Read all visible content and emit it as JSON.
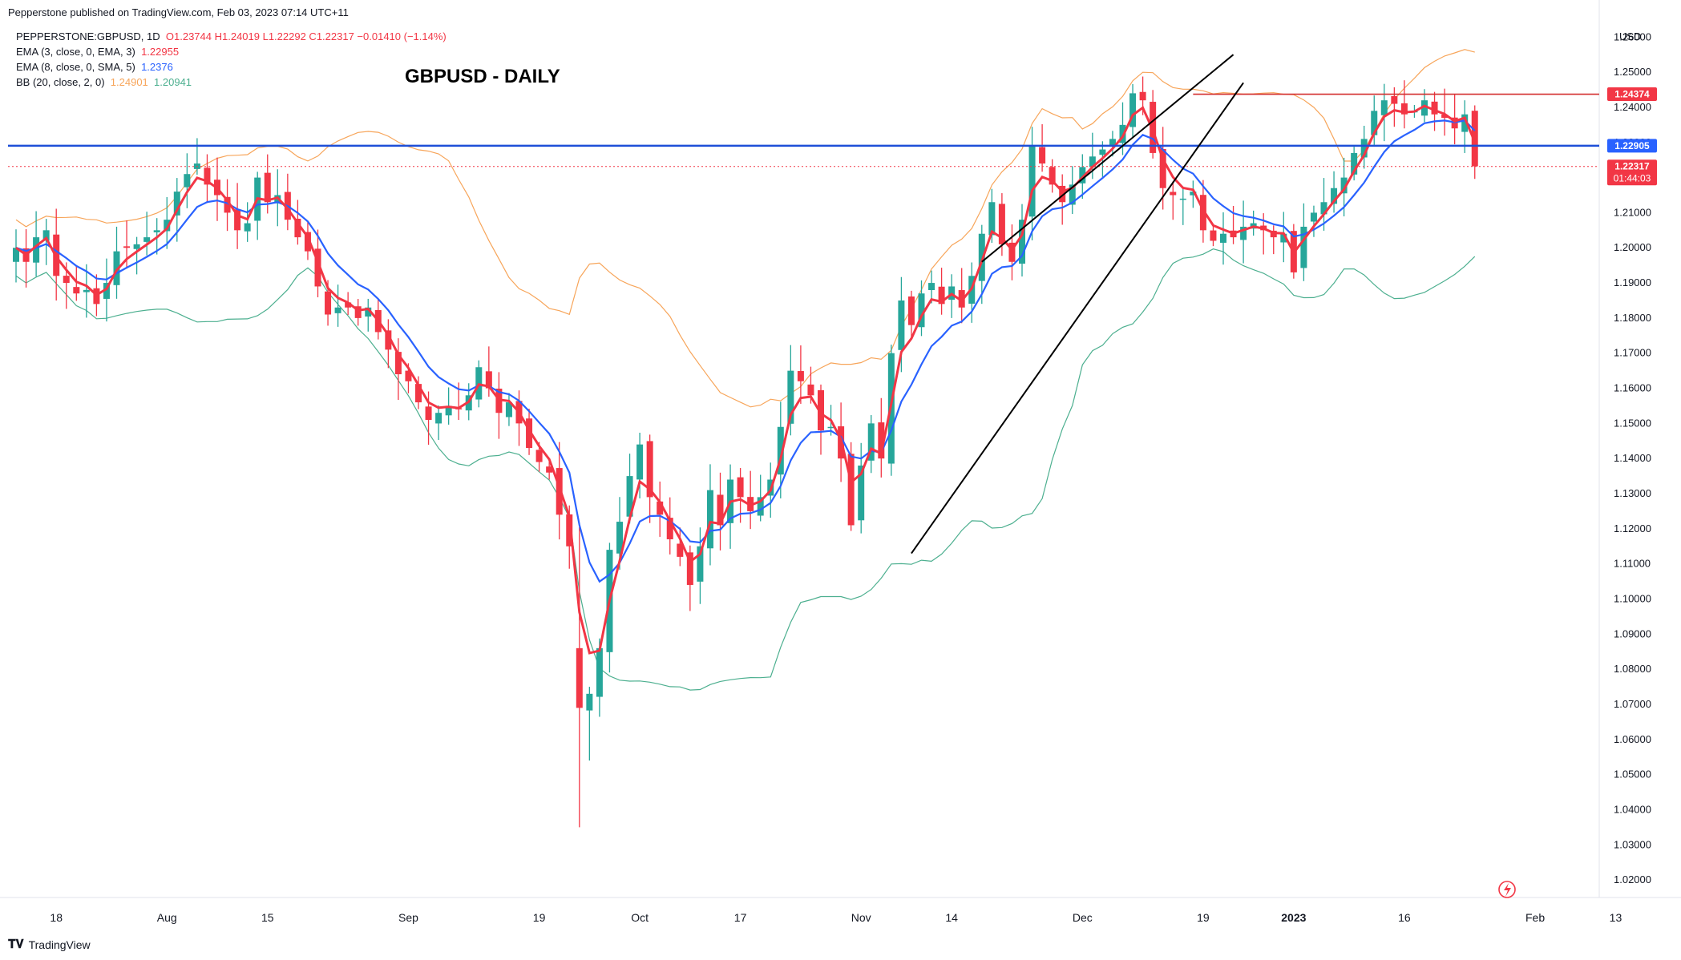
{
  "header": {
    "published": "Pepperstone published on TradingView.com, Feb 03, 2023 07:14 UTC+11"
  },
  "legend": {
    "symbol": "PEPPERSTONE:GBPUSD, 1D",
    "ohlc": "O1.23744  H1.24019  L1.22292  C1.22317  −0.01410 (−1.14%)",
    "ema3_label": "EMA (3, close, 0, EMA, 3)",
    "ema3_value": "1.22955",
    "ema8_label": "EMA (8, close, 0, SMA, 5)",
    "ema8_value": "1.2376",
    "bb_label": "BB (20, close, 2, 0)",
    "bb_upper": "1.24901",
    "bb_lower": "1.20941"
  },
  "chart_title": "GBPUSD - DAILY",
  "footer": {
    "brand": "TradingView"
  },
  "colors": {
    "up": "#26a69a",
    "down": "#f23645",
    "ema3": "#f23645",
    "ema8": "#2962ff",
    "bb_upper": "#f7a55a",
    "bb_lower": "#4caf8f",
    "support": "#1e4fd8",
    "resistance": "#d32f2f",
    "trendline": "#000000"
  },
  "price_tags": [
    {
      "value": "1.24374",
      "color": "#f23645"
    },
    {
      "value": "1.22905",
      "color": "#2962ff"
    },
    {
      "value": "1.22317",
      "sub": "01:44:03",
      "color": "#f23645"
    }
  ],
  "chart_data": {
    "type": "candlestick",
    "title": "GBPUSD - DAILY",
    "currency_label": "USD",
    "y_range": [
      1.015,
      1.266
    ],
    "y_ticks": [
      "1.02000",
      "1.03000",
      "1.04000",
      "1.05000",
      "1.06000",
      "1.07000",
      "1.08000",
      "1.09000",
      "1.10000",
      "1.11000",
      "1.12000",
      "1.13000",
      "1.14000",
      "1.15000",
      "1.16000",
      "1.17000",
      "1.18000",
      "1.19000",
      "1.20000",
      "1.21000",
      "1.22000",
      "1.23000",
      "1.24000",
      "1.25000",
      "1.26000"
    ],
    "x_ticks": [
      {
        "label": "18",
        "day": 4
      },
      {
        "label": "Aug",
        "day": 15
      },
      {
        "label": "15",
        "day": 25
      },
      {
        "label": "Sep",
        "day": 39
      },
      {
        "label": "19",
        "day": 52
      },
      {
        "label": "Oct",
        "day": 62
      },
      {
        "label": "17",
        "day": 72
      },
      {
        "label": "Nov",
        "day": 84
      },
      {
        "label": "14",
        "day": 93
      },
      {
        "label": "Dec",
        "day": 106
      },
      {
        "label": "19",
        "day": 118
      },
      {
        "label": "2023",
        "day": 127
      },
      {
        "label": "16",
        "day": 138
      },
      {
        "label": "Feb",
        "day": 151
      },
      {
        "label": "13",
        "day": 159
      }
    ],
    "closes": [
      1.2,
      1.196,
      1.203,
      1.205,
      1.192,
      1.19,
      1.187,
      1.188,
      1.184,
      1.19,
      1.199,
      1.2,
      1.201,
      1.203,
      1.205,
      1.208,
      1.216,
      1.221,
      1.224,
      1.218,
      1.215,
      1.21,
      1.205,
      1.207,
      1.22,
      1.213,
      1.215,
      1.208,
      1.203,
      1.199,
      1.189,
      1.181,
      1.183,
      1.183,
      1.18,
      1.183,
      1.176,
      1.171,
      1.164,
      1.162,
      1.156,
      1.151,
      1.153,
      1.155,
      1.154,
      1.158,
      1.166,
      1.16,
      1.153,
      1.156,
      1.15,
      1.143,
      1.139,
      1.136,
      1.124,
      1.115,
      1.069,
      1.073,
      1.086,
      1.114,
      1.122,
      1.135,
      1.144,
      1.129,
      1.124,
      1.117,
      1.112,
      1.104,
      1.115,
      1.131,
      1.121,
      1.134,
      1.129,
      1.125,
      1.129,
      1.134,
      1.149,
      1.165,
      1.162,
      1.158,
      1.148,
      1.149,
      1.14,
      1.121,
      1.138,
      1.15,
      1.14,
      1.17,
      1.185,
      1.178,
      1.187,
      1.19,
      1.184,
      1.189,
      1.183,
      1.192,
      1.204,
      1.213,
      1.201,
      1.196,
      1.208,
      1.229,
      1.224,
      1.218,
      1.213,
      1.218,
      1.223,
      1.226,
      1.228,
      1.231,
      1.235,
      1.244,
      1.242,
      1.227,
      1.217,
      1.215,
      1.214,
      1.216,
      1.205,
      1.202,
      1.204,
      1.203,
      1.206,
      1.207,
      1.205,
      1.203,
      1.204,
      1.193,
      1.206,
      1.21,
      1.213,
      1.217,
      1.22,
      1.227,
      1.231,
      1.239,
      1.242,
      1.241,
      1.238,
      1.239,
      1.242,
      1.238,
      1.237,
      1.234,
      1.238,
      1.2232
    ],
    "ema3_last": 1.22955,
    "ema8_last": 1.2376,
    "bb_upper_last": 1.24901,
    "bb_lower_last": 1.20941,
    "support_level": 1.22905,
    "resistance_level": 1.24374,
    "last_close": 1.22317,
    "trendline_upper": [
      {
        "day": 96,
        "price": 1.196
      },
      {
        "day": 121,
        "price": 1.255
      }
    ],
    "trendline_lower": [
      {
        "day": 89,
        "price": 1.113
      },
      {
        "day": 122,
        "price": 1.247
      }
    ]
  }
}
